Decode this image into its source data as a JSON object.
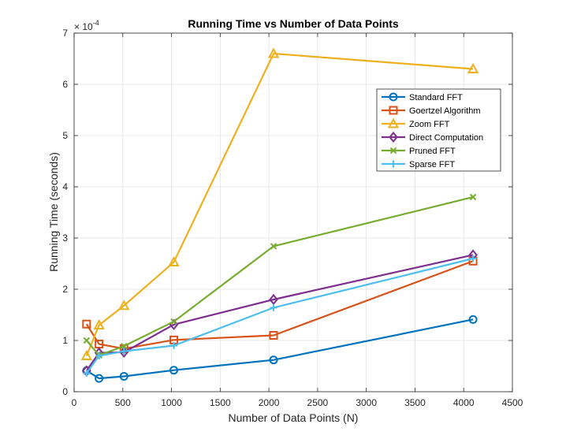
{
  "chart_data": {
    "type": "line",
    "title": "Running Time vs Number of Data Points",
    "xlabel": "Number of Data Points (N)",
    "ylabel": "Running Time (seconds)",
    "y_multiplier": {
      "base": "× 10",
      "exponent": "-4"
    },
    "xlim": [
      0,
      4500
    ],
    "ylim": [
      0,
      7
    ],
    "x_ticks": [
      0,
      500,
      1000,
      1500,
      2000,
      2500,
      3000,
      3500,
      4000,
      4500
    ],
    "y_ticks": [
      0,
      1,
      2,
      3,
      4,
      5,
      6,
      7
    ],
    "grid": true,
    "legend_position": "top-right",
    "x": [
      128,
      256,
      512,
      1024,
      2048,
      4096
    ],
    "series": [
      {
        "name": "Standard FFT",
        "marker": "circle",
        "color": "#0072BD",
        "values": [
          0.41,
          0.26,
          0.3,
          0.42,
          0.62,
          1.41
        ]
      },
      {
        "name": "Goertzel Algorithm",
        "marker": "square",
        "color": "#D95319",
        "values": [
          1.32,
          0.93,
          0.84,
          1.01,
          1.1,
          2.55
        ]
      },
      {
        "name": "Zoom FFT",
        "marker": "triangle",
        "color": "#EDB120",
        "values": [
          0.7,
          1.3,
          1.68,
          2.53,
          6.6,
          6.3
        ]
      },
      {
        "name": "Direct Computation",
        "marker": "diamond",
        "color": "#7E2F8E",
        "values": [
          0.41,
          0.76,
          0.77,
          1.31,
          1.8,
          2.67
        ]
      },
      {
        "name": "Pruned FFT",
        "marker": "x",
        "color": "#77AC30",
        "values": [
          1.0,
          0.71,
          0.89,
          1.37,
          2.84,
          3.8
        ]
      },
      {
        "name": "Sparse FFT",
        "marker": "plus",
        "color": "#4DBEEE",
        "values": [
          0.36,
          0.7,
          0.79,
          0.9,
          1.64,
          2.6
        ]
      }
    ]
  }
}
